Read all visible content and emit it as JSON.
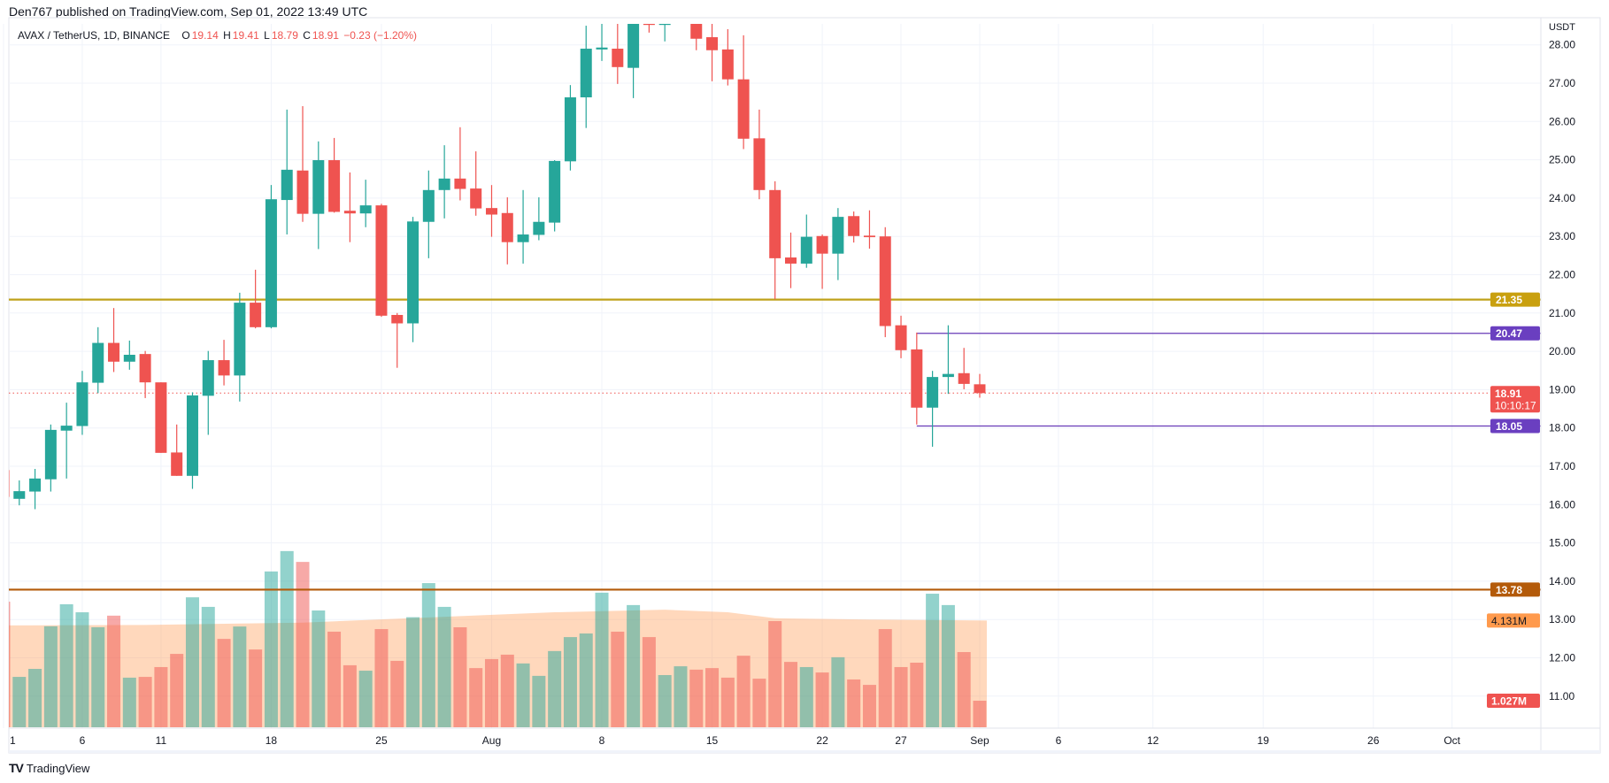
{
  "header": {
    "published": "Den767 published on TradingView.com, Sep 01, 2022 13:49 UTC"
  },
  "legend": {
    "symbol": "AVAX / TetherUS, 1D, BINANCE",
    "o_label": "O",
    "o": "19.14",
    "h_label": "H",
    "h": "19.41",
    "l_label": "L",
    "l": "18.79",
    "c_label": "C",
    "c": "18.91",
    "change": "−0.23 (−1.20%)"
  },
  "watermark": {
    "logo": "TV",
    "text": "TradingView"
  },
  "colors": {
    "up": "#26a69a",
    "down": "#ef5350",
    "level_21": "#bfa21a",
    "level_21_label": "#c9a00f",
    "range": "#673ab7",
    "level_13": "#b35a0a",
    "volume_ma": "#ff9a4d"
  },
  "chart_data": {
    "type": "candlestick",
    "currency_label": "USDT",
    "y_ticks": [
      "11.00",
      "12.00",
      "13.00",
      "14.00",
      "15.00",
      "16.00",
      "17.00",
      "18.00",
      "19.00",
      "20.00",
      "21.00",
      "22.00",
      "23.00",
      "24.00",
      "25.00",
      "26.00",
      "27.00",
      "28.00"
    ],
    "x_ticks": [
      {
        "date": "2022-07-01",
        "label": "1"
      },
      {
        "date": "2022-07-06",
        "label": "6"
      },
      {
        "date": "2022-07-11",
        "label": "11"
      },
      {
        "date": "2022-07-18",
        "label": "18"
      },
      {
        "date": "2022-07-25",
        "label": "25"
      },
      {
        "date": "2022-08-01",
        "label": "Aug"
      },
      {
        "date": "2022-08-08",
        "label": "8"
      },
      {
        "date": "2022-08-15",
        "label": "15"
      },
      {
        "date": "2022-08-22",
        "label": "22"
      },
      {
        "date": "2022-08-27",
        "label": "27"
      },
      {
        "date": "2022-09-01",
        "label": "Sep"
      },
      {
        "date": "2022-09-06",
        "label": "6"
      },
      {
        "date": "2022-09-12",
        "label": "12"
      },
      {
        "date": "2022-09-19",
        "label": "19"
      },
      {
        "date": "2022-09-26",
        "label": "26"
      },
      {
        "date": "2022-10-01",
        "label": "Oct"
      }
    ],
    "grid": true,
    "candles_columns": [
      "date",
      "open",
      "high",
      "low",
      "close",
      "volume_M"
    ],
    "candles": [
      [
        "2022-07-01",
        16.9,
        17.1,
        16.1,
        16.2,
        4.86
      ],
      [
        "2022-07-02",
        16.15,
        16.63,
        15.98,
        16.35,
        1.95
      ],
      [
        "2022-07-03",
        16.34,
        16.93,
        15.88,
        16.68,
        2.26
      ],
      [
        "2022-07-04",
        16.66,
        18.09,
        16.34,
        17.95,
        3.91
      ],
      [
        "2022-07-05",
        17.93,
        18.66,
        16.68,
        18.06,
        4.76
      ],
      [
        "2022-07-06",
        18.05,
        19.49,
        17.82,
        19.19,
        4.45
      ],
      [
        "2022-07-07",
        19.18,
        20.63,
        18.91,
        20.22,
        3.87
      ],
      [
        "2022-07-08",
        20.22,
        21.13,
        19.46,
        19.73,
        4.32
      ],
      [
        "2022-07-09",
        19.73,
        20.28,
        19.52,
        19.91,
        1.92
      ],
      [
        "2022-07-10",
        19.93,
        20.01,
        18.78,
        19.19,
        1.95
      ],
      [
        "2022-07-11",
        19.19,
        19.19,
        17.35,
        17.35,
        2.33
      ],
      [
        "2022-07-12",
        17.36,
        18.09,
        16.75,
        16.75,
        2.84
      ],
      [
        "2022-07-13",
        16.75,
        18.93,
        16.41,
        18.85,
        5.03
      ],
      [
        "2022-07-14",
        18.84,
        20.01,
        17.82,
        19.77,
        4.66
      ],
      [
        "2022-07-15",
        19.77,
        20.3,
        19.11,
        19.37,
        3.42
      ],
      [
        "2022-07-16",
        19.37,
        21.53,
        18.69,
        21.27,
        3.9
      ],
      [
        "2022-07-17",
        21.27,
        22.13,
        20.6,
        20.63,
        3.01
      ],
      [
        "2022-07-18",
        20.63,
        24.34,
        20.6,
        23.97,
        6.03
      ],
      [
        "2022-07-19",
        23.95,
        26.31,
        23.05,
        24.74,
        6.82
      ],
      [
        "2022-07-20",
        24.72,
        26.4,
        23.38,
        23.59,
        6.4
      ],
      [
        "2022-07-21",
        23.59,
        25.48,
        22.67,
        24.99,
        4.52
      ],
      [
        "2022-07-22",
        24.99,
        25.57,
        23.62,
        23.64,
        3.7
      ],
      [
        "2022-07-23",
        23.67,
        24.67,
        22.85,
        23.6,
        2.4
      ],
      [
        "2022-07-24",
        23.6,
        24.48,
        23.24,
        23.81,
        2.19
      ],
      [
        "2022-07-25",
        23.81,
        23.85,
        20.9,
        20.93,
        3.8
      ],
      [
        "2022-07-26",
        20.95,
        21.0,
        19.57,
        20.73,
        2.57
      ],
      [
        "2022-07-27",
        20.73,
        23.51,
        20.24,
        23.39,
        4.26
      ],
      [
        "2022-07-28",
        23.38,
        24.72,
        22.43,
        24.21,
        5.58
      ],
      [
        "2022-07-29",
        24.21,
        25.38,
        23.47,
        24.51,
        4.66
      ],
      [
        "2022-07-30",
        24.51,
        25.85,
        23.94,
        24.24,
        3.87
      ],
      [
        "2022-07-31",
        24.25,
        25.22,
        23.54,
        23.73,
        2.29
      ],
      [
        "2022-08-01",
        23.74,
        24.34,
        22.99,
        23.57,
        2.64
      ],
      [
        "2022-08-02",
        23.61,
        24.02,
        22.27,
        22.85,
        2.81
      ],
      [
        "2022-08-03",
        22.85,
        24.21,
        22.29,
        23.05,
        2.47
      ],
      [
        "2022-08-04",
        23.04,
        24.02,
        22.9,
        23.38,
        1.99
      ],
      [
        "2022-08-05",
        23.36,
        24.99,
        23.13,
        24.97,
        2.95
      ],
      [
        "2022-08-06",
        24.96,
        26.95,
        24.72,
        26.63,
        3.49
      ],
      [
        "2022-08-07",
        26.63,
        28.5,
        25.83,
        27.9,
        3.63
      ],
      [
        "2022-08-08",
        27.88,
        28.9,
        27.58,
        27.93,
        5.21
      ],
      [
        "2022-08-09",
        27.9,
        28.9,
        26.98,
        27.42,
        3.7
      ],
      [
        "2022-08-10",
        27.4,
        29.4,
        26.61,
        28.9,
        4.73
      ],
      [
        "2022-08-11",
        28.9,
        29.2,
        28.32,
        28.52,
        3.49
      ],
      [
        "2022-08-12",
        28.52,
        29.1,
        28.09,
        28.9,
        2.02
      ],
      [
        "2022-08-13",
        28.9,
        29.9,
        28.7,
        29.3,
        2.36
      ],
      [
        "2022-08-14",
        29.2,
        29.5,
        27.86,
        28.16,
        2.23
      ],
      [
        "2022-08-15",
        28.2,
        28.7,
        27.05,
        27.86,
        2.29
      ],
      [
        "2022-08-16",
        27.88,
        28.41,
        26.94,
        27.1,
        1.92
      ],
      [
        "2022-08-17",
        27.1,
        28.25,
        25.28,
        25.55,
        2.77
      ],
      [
        "2022-08-18",
        25.56,
        26.31,
        23.97,
        24.21,
        1.88
      ],
      [
        "2022-08-19",
        24.21,
        24.44,
        21.36,
        22.43,
        4.11
      ],
      [
        "2022-08-20",
        22.45,
        23.1,
        21.65,
        22.29,
        2.53
      ],
      [
        "2022-08-21",
        22.29,
        23.57,
        22.18,
        22.99,
        2.33
      ],
      [
        "2022-08-22",
        23.01,
        23.05,
        21.63,
        22.55,
        2.12
      ],
      [
        "2022-08-23",
        22.55,
        23.74,
        21.86,
        23.51,
        2.71
      ],
      [
        "2022-08-24",
        23.53,
        23.65,
        22.84,
        23.01,
        1.85
      ],
      [
        "2022-08-25",
        23.02,
        23.68,
        22.68,
        22.98,
        1.64
      ],
      [
        "2022-08-26",
        23.0,
        23.24,
        20.37,
        20.66,
        3.8
      ],
      [
        "2022-08-27",
        20.68,
        20.93,
        19.82,
        20.03,
        2.33
      ],
      [
        "2022-08-28",
        20.05,
        20.49,
        18.09,
        18.53,
        2.5
      ],
      [
        "2022-08-29",
        18.53,
        19.49,
        17.51,
        19.33,
        5.17
      ],
      [
        "2022-08-30",
        19.33,
        20.68,
        18.89,
        19.41,
        4.73
      ],
      [
        "2022-08-31",
        19.43,
        20.09,
        19.01,
        19.15,
        2.91
      ],
      [
        "2022-09-01",
        19.14,
        19.41,
        18.79,
        18.91,
        1.027
      ]
    ],
    "volume_ma": [
      [
        "2022-07-01",
        3.94
      ],
      [
        "2022-07-10",
        3.96
      ],
      [
        "2022-07-20",
        4.05
      ],
      [
        "2022-07-28",
        4.25
      ],
      [
        "2022-08-05",
        4.45
      ],
      [
        "2022-08-12",
        4.55
      ],
      [
        "2022-08-16",
        4.45
      ],
      [
        "2022-08-19",
        4.22
      ],
      [
        "2022-08-25",
        4.17
      ],
      [
        "2022-09-01",
        4.13
      ]
    ],
    "levels": [
      {
        "price": 21.35,
        "label": "21.35",
        "style": "horizontal",
        "color": "#bfa21a",
        "label_bg": "#c9a00f",
        "from": "start"
      },
      {
        "price": 20.47,
        "label": "20.47",
        "style": "ray",
        "color": "#673ab7",
        "label_bg": "#6a3fc0",
        "from": "2022-08-28"
      },
      {
        "price": 18.05,
        "label": "18.05",
        "style": "ray",
        "color": "#673ab7",
        "label_bg": "#6a3fc0",
        "from": "2022-08-28"
      },
      {
        "price": 13.78,
        "label": "13.78",
        "style": "horizontal",
        "color": "#b35a0a",
        "label_bg": "#b35a0a",
        "from": "start"
      }
    ],
    "last_price": {
      "price": 18.91,
      "label": "18.91",
      "countdown": "10:10:17"
    },
    "volume_labels": {
      "ma": "4.131M",
      "ma_value": 4.131,
      "last": "1.027M",
      "last_value": 1.027
    }
  }
}
